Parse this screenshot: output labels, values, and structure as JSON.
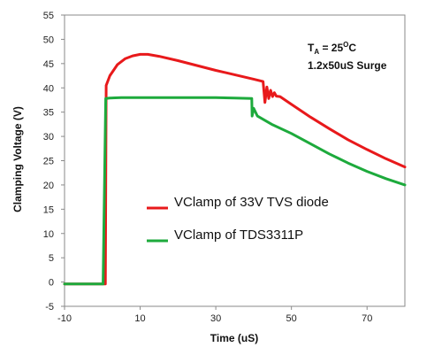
{
  "chart_data": {
    "type": "line",
    "xlabel": "Time (uS)",
    "ylabel": "Clamping Voltage (V)",
    "xlim": [
      -10,
      80
    ],
    "ylim": [
      -5,
      55
    ],
    "x_ticks": [
      -10,
      10,
      30,
      50,
      70
    ],
    "y_ticks": [
      -5,
      0,
      5,
      10,
      15,
      20,
      25,
      30,
      35,
      40,
      45,
      50,
      55
    ],
    "grid": "none",
    "legend_position": "center",
    "annotation": {
      "ta_symbol": "T",
      "ta_sub": "A",
      "ta_value_prefix": " = 25",
      "ta_unit_sup": "O",
      "ta_unit": "C",
      "surge": "1.2x50uS Surge"
    },
    "series": [
      {
        "name": "VClamp of 33V TVS diode",
        "color": "#e8191b",
        "points": [
          [
            -10,
            -0.4
          ],
          [
            0.8,
            -0.4
          ],
          [
            1.0,
            40.5
          ],
          [
            2,
            42.5
          ],
          [
            4,
            44.8
          ],
          [
            6,
            46.0
          ],
          [
            8,
            46.6
          ],
          [
            10,
            46.9
          ],
          [
            12,
            46.9
          ],
          [
            15,
            46.5
          ],
          [
            20,
            45.6
          ],
          [
            25,
            44.6
          ],
          [
            30,
            43.6
          ],
          [
            35,
            42.7
          ],
          [
            40,
            41.8
          ],
          [
            42.5,
            41.3
          ],
          [
            43,
            37.0
          ],
          [
            43.5,
            40.2
          ],
          [
            44,
            37.8
          ],
          [
            44.5,
            39.5
          ],
          [
            45,
            38.2
          ],
          [
            45.5,
            39.0
          ],
          [
            46,
            38.3
          ],
          [
            47,
            38.2
          ],
          [
            50,
            36.6
          ],
          [
            55,
            34.0
          ],
          [
            60,
            31.6
          ],
          [
            65,
            29.3
          ],
          [
            70,
            27.3
          ],
          [
            75,
            25.4
          ],
          [
            80,
            23.7
          ]
        ]
      },
      {
        "name": "VClamp of TDS3311P",
        "color": "#1daa3c",
        "points": [
          [
            -10,
            -0.4
          ],
          [
            0.2,
            -0.4
          ],
          [
            0.9,
            37.8
          ],
          [
            2,
            37.9
          ],
          [
            5,
            38.0
          ],
          [
            10,
            38.0
          ],
          [
            15,
            38.0
          ],
          [
            20,
            38.0
          ],
          [
            25,
            38.0
          ],
          [
            30,
            38.0
          ],
          [
            35,
            37.9
          ],
          [
            39.5,
            37.8
          ],
          [
            39.6,
            34.2
          ],
          [
            40.0,
            35.8
          ],
          [
            41,
            34.2
          ],
          [
            45,
            32.4
          ],
          [
            50,
            30.6
          ],
          [
            55,
            28.5
          ],
          [
            60,
            26.4
          ],
          [
            65,
            24.5
          ],
          [
            70,
            22.8
          ],
          [
            75,
            21.3
          ],
          [
            80,
            20.0
          ]
        ]
      }
    ]
  }
}
